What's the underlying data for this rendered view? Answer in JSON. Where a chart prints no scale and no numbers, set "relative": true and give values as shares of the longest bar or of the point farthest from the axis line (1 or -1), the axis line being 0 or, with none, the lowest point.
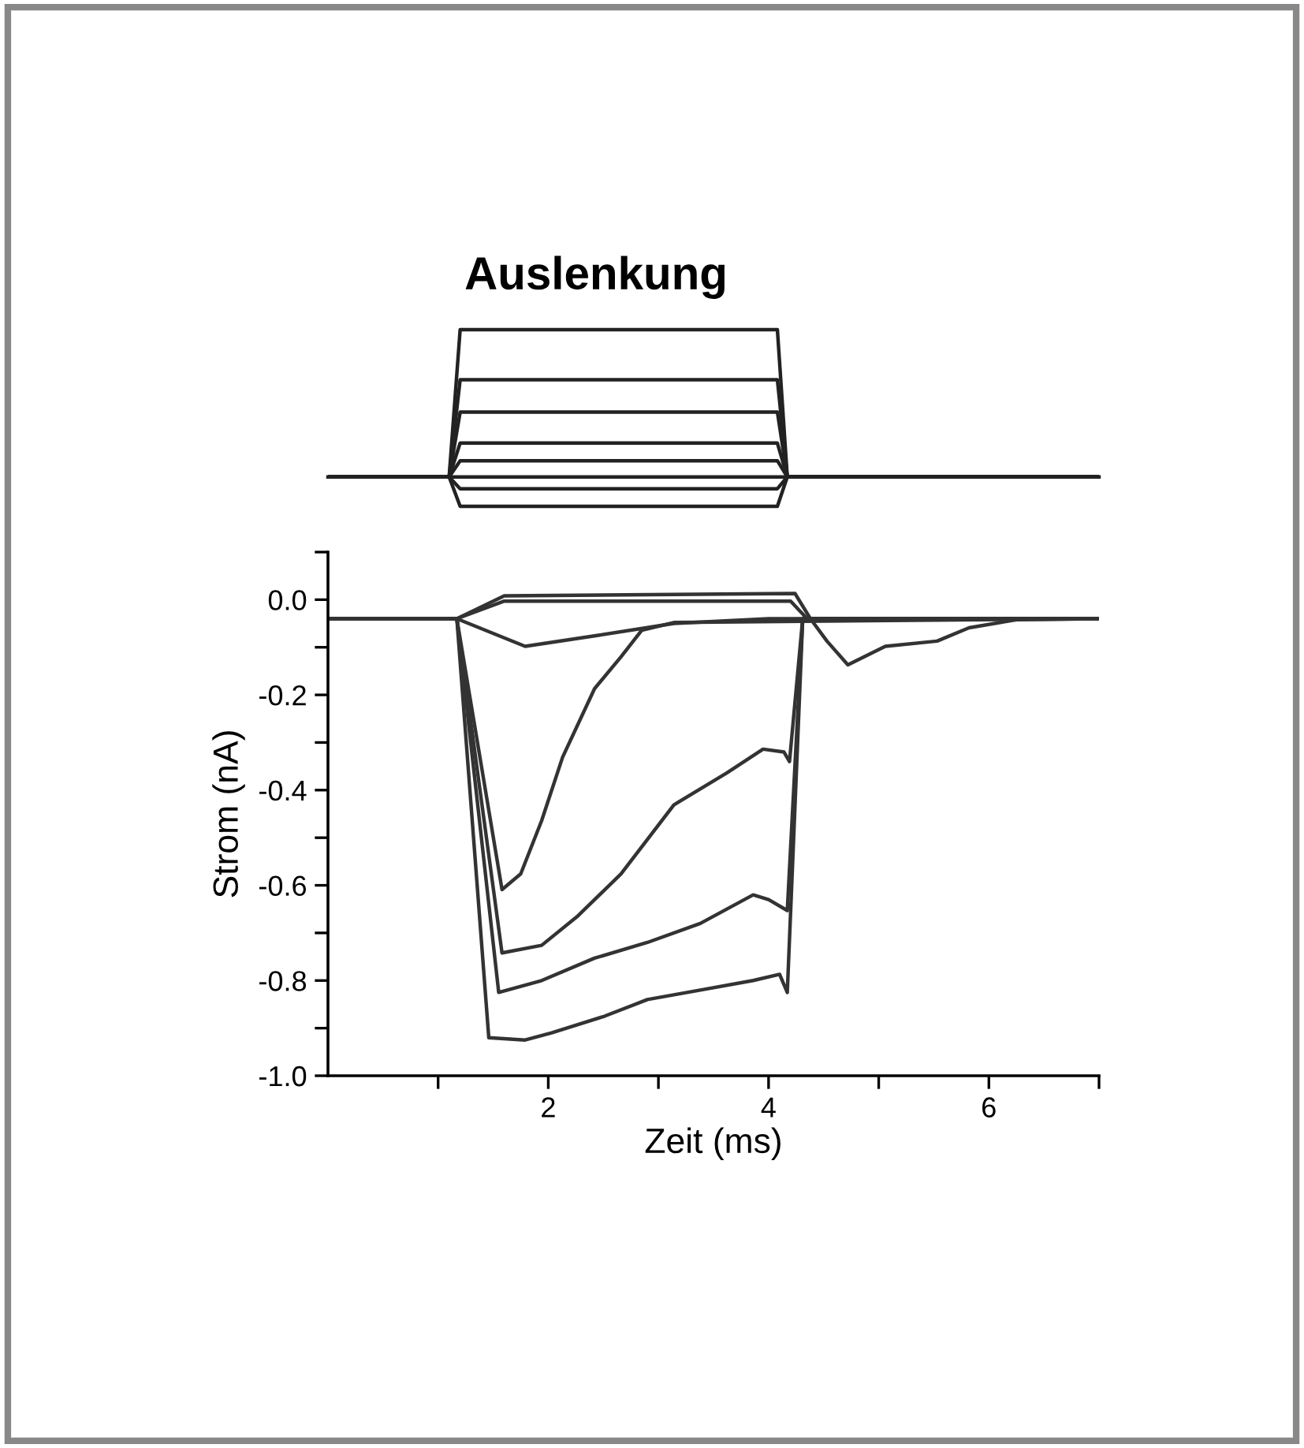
{
  "chart_data": [
    {
      "type": "line",
      "title": "Auslenkung",
      "relative": true,
      "tick_labels": false,
      "xlim": [
        0,
        7
      ],
      "x": [
        0,
        1.1,
        1.2,
        4.08,
        4.17,
        7
      ],
      "series": [
        {
          "color": "#222222",
          "values": [
            0,
            0,
            1,
            1,
            0,
            0
          ]
        },
        {
          "color": "#222222",
          "values": [
            0,
            0,
            0.66,
            0.66,
            0,
            0
          ]
        },
        {
          "color": "#222222",
          "values": [
            0,
            0,
            0.44,
            0.44,
            0,
            0
          ]
        },
        {
          "color": "#222222",
          "values": [
            0,
            0,
            0.23,
            0.23,
            0,
            0
          ]
        },
        {
          "color": "#222222",
          "values": [
            0,
            0,
            0.11,
            0.11,
            0,
            0
          ]
        },
        {
          "color": "#222222",
          "values": [
            0,
            0,
            -0.08,
            -0.08,
            0,
            0
          ]
        },
        {
          "color": "#222222",
          "values": [
            0,
            0,
            -0.2,
            -0.2,
            0,
            0
          ]
        }
      ]
    },
    {
      "type": "line",
      "xlabel": "Zeit (ms)",
      "ylabel": "Strom (nA)",
      "xlim": [
        0,
        7
      ],
      "ylim": [
        -1.0,
        0.1
      ],
      "xticks": [
        {
          "value": 1,
          "label": null
        },
        2,
        {
          "value": 3,
          "label": null
        },
        4,
        {
          "value": 5,
          "label": null
        },
        6,
        {
          "value": 7,
          "label": null
        }
      ],
      "yticks": [
        {
          "value": 0.1,
          "label": null
        },
        {
          "value": 0.0,
          "label": "0.0"
        },
        {
          "value": -0.1,
          "label": null
        },
        {
          "value": -0.2,
          "label": "-0.2"
        },
        {
          "value": -0.3,
          "label": null
        },
        {
          "value": -0.4,
          "label": "-0.4"
        },
        {
          "value": -0.5,
          "label": null
        },
        {
          "value": -0.6,
          "label": "-0.6"
        },
        {
          "value": -0.7,
          "label": null
        },
        {
          "value": -0.8,
          "label": "-0.8"
        },
        {
          "value": -0.9,
          "label": null
        },
        {
          "value": -1.0,
          "label": "-1.0"
        }
      ],
      "grid": false,
      "legend": false,
      "series": [
        {
          "color": "#333333",
          "x": [
            0,
            1.17,
            1.46,
            1.79,
            2.03,
            2.51,
            2.9,
            3.38,
            3.86,
            4.1,
            4.17,
            4.31,
            7
          ],
          "values": [
            -0.04,
            -0.04,
            -0.92,
            -0.925,
            -0.91,
            -0.875,
            -0.84,
            -0.82,
            -0.8,
            -0.787,
            -0.825,
            -0.04,
            -0.04
          ]
        },
        {
          "color": "#333333",
          "x": [
            0,
            1.17,
            1.55,
            1.94,
            2.42,
            2.9,
            3.38,
            3.86,
            4.0,
            4.17,
            4.31,
            7
          ],
          "values": [
            -0.04,
            -0.04,
            -0.825,
            -0.8,
            -0.753,
            -0.72,
            -0.68,
            -0.62,
            -0.63,
            -0.653,
            -0.04,
            -0.04
          ]
        },
        {
          "color": "#333333",
          "x": [
            0,
            1.17,
            1.58,
            1.94,
            2.27,
            2.66,
            3.14,
            3.62,
            3.95,
            4.14,
            4.19,
            4.31,
            7
          ],
          "values": [
            -0.04,
            -0.04,
            -0.742,
            -0.726,
            -0.664,
            -0.576,
            -0.431,
            -0.364,
            -0.314,
            -0.32,
            -0.34,
            -0.04,
            -0.04
          ]
        },
        {
          "color": "#333333",
          "x": [
            0,
            1.17,
            1.58,
            1.75,
            1.94,
            2.13,
            2.42,
            2.66,
            2.85,
            3.14,
            7
          ],
          "values": [
            -0.04,
            -0.04,
            -0.609,
            -0.576,
            -0.464,
            -0.331,
            -0.187,
            -0.12,
            -0.064,
            -0.048,
            -0.04
          ]
        },
        {
          "color": "#333333",
          "x": [
            0,
            1.17,
            1.79,
            2.42,
            3.14,
            4.0,
            4.3,
            7
          ],
          "values": [
            -0.04,
            -0.04,
            -0.098,
            -0.076,
            -0.05,
            -0.04,
            -0.04,
            -0.04
          ]
        },
        {
          "color": "#333333",
          "x": [
            0,
            1.17,
            1.6,
            4.24,
            4.38,
            4.53,
            4.72,
            5.06,
            5.53,
            5.82,
            6.25,
            7
          ],
          "values": [
            -0.04,
            -0.04,
            0.008,
            0.013,
            -0.04,
            -0.087,
            -0.137,
            -0.098,
            -0.087,
            -0.059,
            -0.042,
            -0.04
          ]
        },
        {
          "color": "#333333",
          "x": [
            0,
            1.17,
            1.6,
            4.2,
            4.35,
            7
          ],
          "values": [
            -0.04,
            -0.04,
            -0.003,
            -0.003,
            -0.04,
            -0.04
          ]
        }
      ]
    }
  ]
}
